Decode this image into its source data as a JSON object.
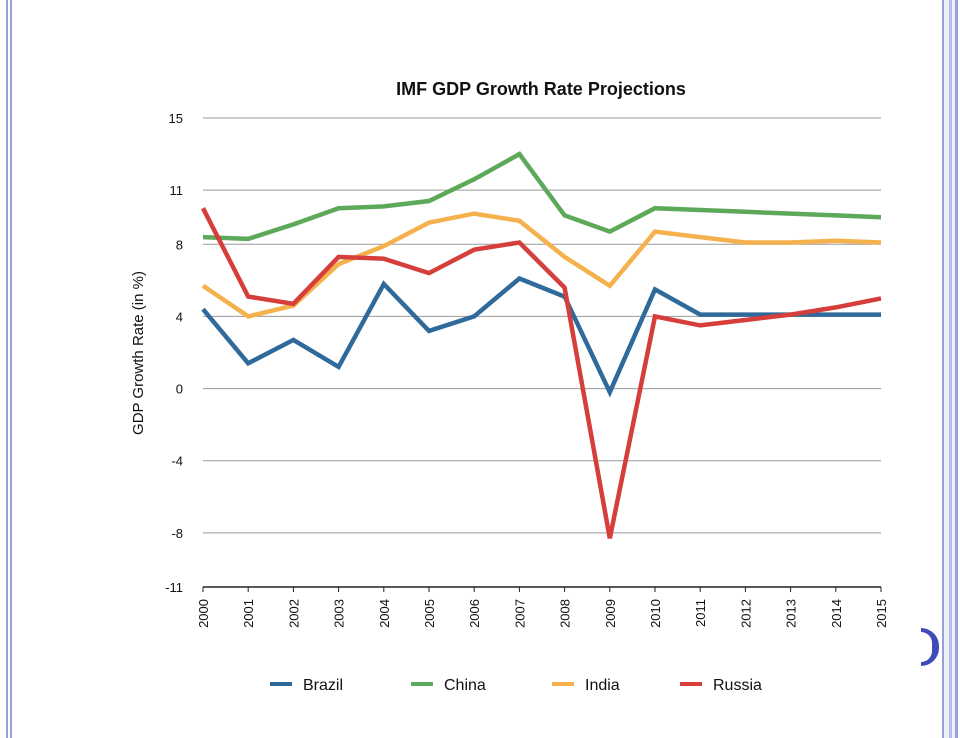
{
  "chart_data": {
    "type": "line",
    "title": "IMF GDP Growth Rate Projections",
    "xlabel": "",
    "ylabel": "GDP Growth Rate (in %)",
    "x": [
      "2000",
      "2001",
      "2002",
      "2003",
      "2004",
      "2005",
      "2006",
      "2007",
      "2008",
      "2009",
      "2010",
      "2011",
      "2012",
      "2013",
      "2014",
      "2015"
    ],
    "y_ticks": [
      15,
      11,
      8,
      4,
      0,
      -4,
      -8,
      -11
    ],
    "ylim": [
      -11,
      15
    ],
    "grid": true,
    "legend_position": "bottom",
    "series": [
      {
        "name": "Brazil",
        "color": "#2f6a9a",
        "values": [
          4.4,
          1.4,
          2.7,
          1.2,
          5.8,
          3.2,
          4.0,
          6.1,
          5.1,
          -0.2,
          5.5,
          4.1,
          4.1,
          4.1,
          4.1,
          4.1
        ]
      },
      {
        "name": "China",
        "color": "#5da95a",
        "values": [
          8.4,
          8.3,
          9.1,
          10.0,
          10.1,
          10.4,
          11.6,
          13.0,
          9.6,
          8.7,
          10.0,
          9.9,
          9.8,
          9.7,
          9.6,
          9.5
        ]
      },
      {
        "name": "India",
        "color": "#f5b14d",
        "values": [
          5.7,
          4.0,
          4.6,
          6.9,
          7.9,
          9.2,
          9.7,
          9.3,
          7.3,
          5.7,
          8.7,
          8.4,
          8.1,
          8.1,
          8.2,
          8.1
        ]
      },
      {
        "name": "Russia",
        "color": "#d63e3c",
        "values": [
          10.0,
          5.1,
          4.7,
          7.3,
          7.2,
          6.4,
          7.7,
          8.1,
          5.6,
          -8.3,
          4.0,
          3.5,
          3.8,
          4.1,
          4.5,
          5.0
        ]
      }
    ]
  }
}
